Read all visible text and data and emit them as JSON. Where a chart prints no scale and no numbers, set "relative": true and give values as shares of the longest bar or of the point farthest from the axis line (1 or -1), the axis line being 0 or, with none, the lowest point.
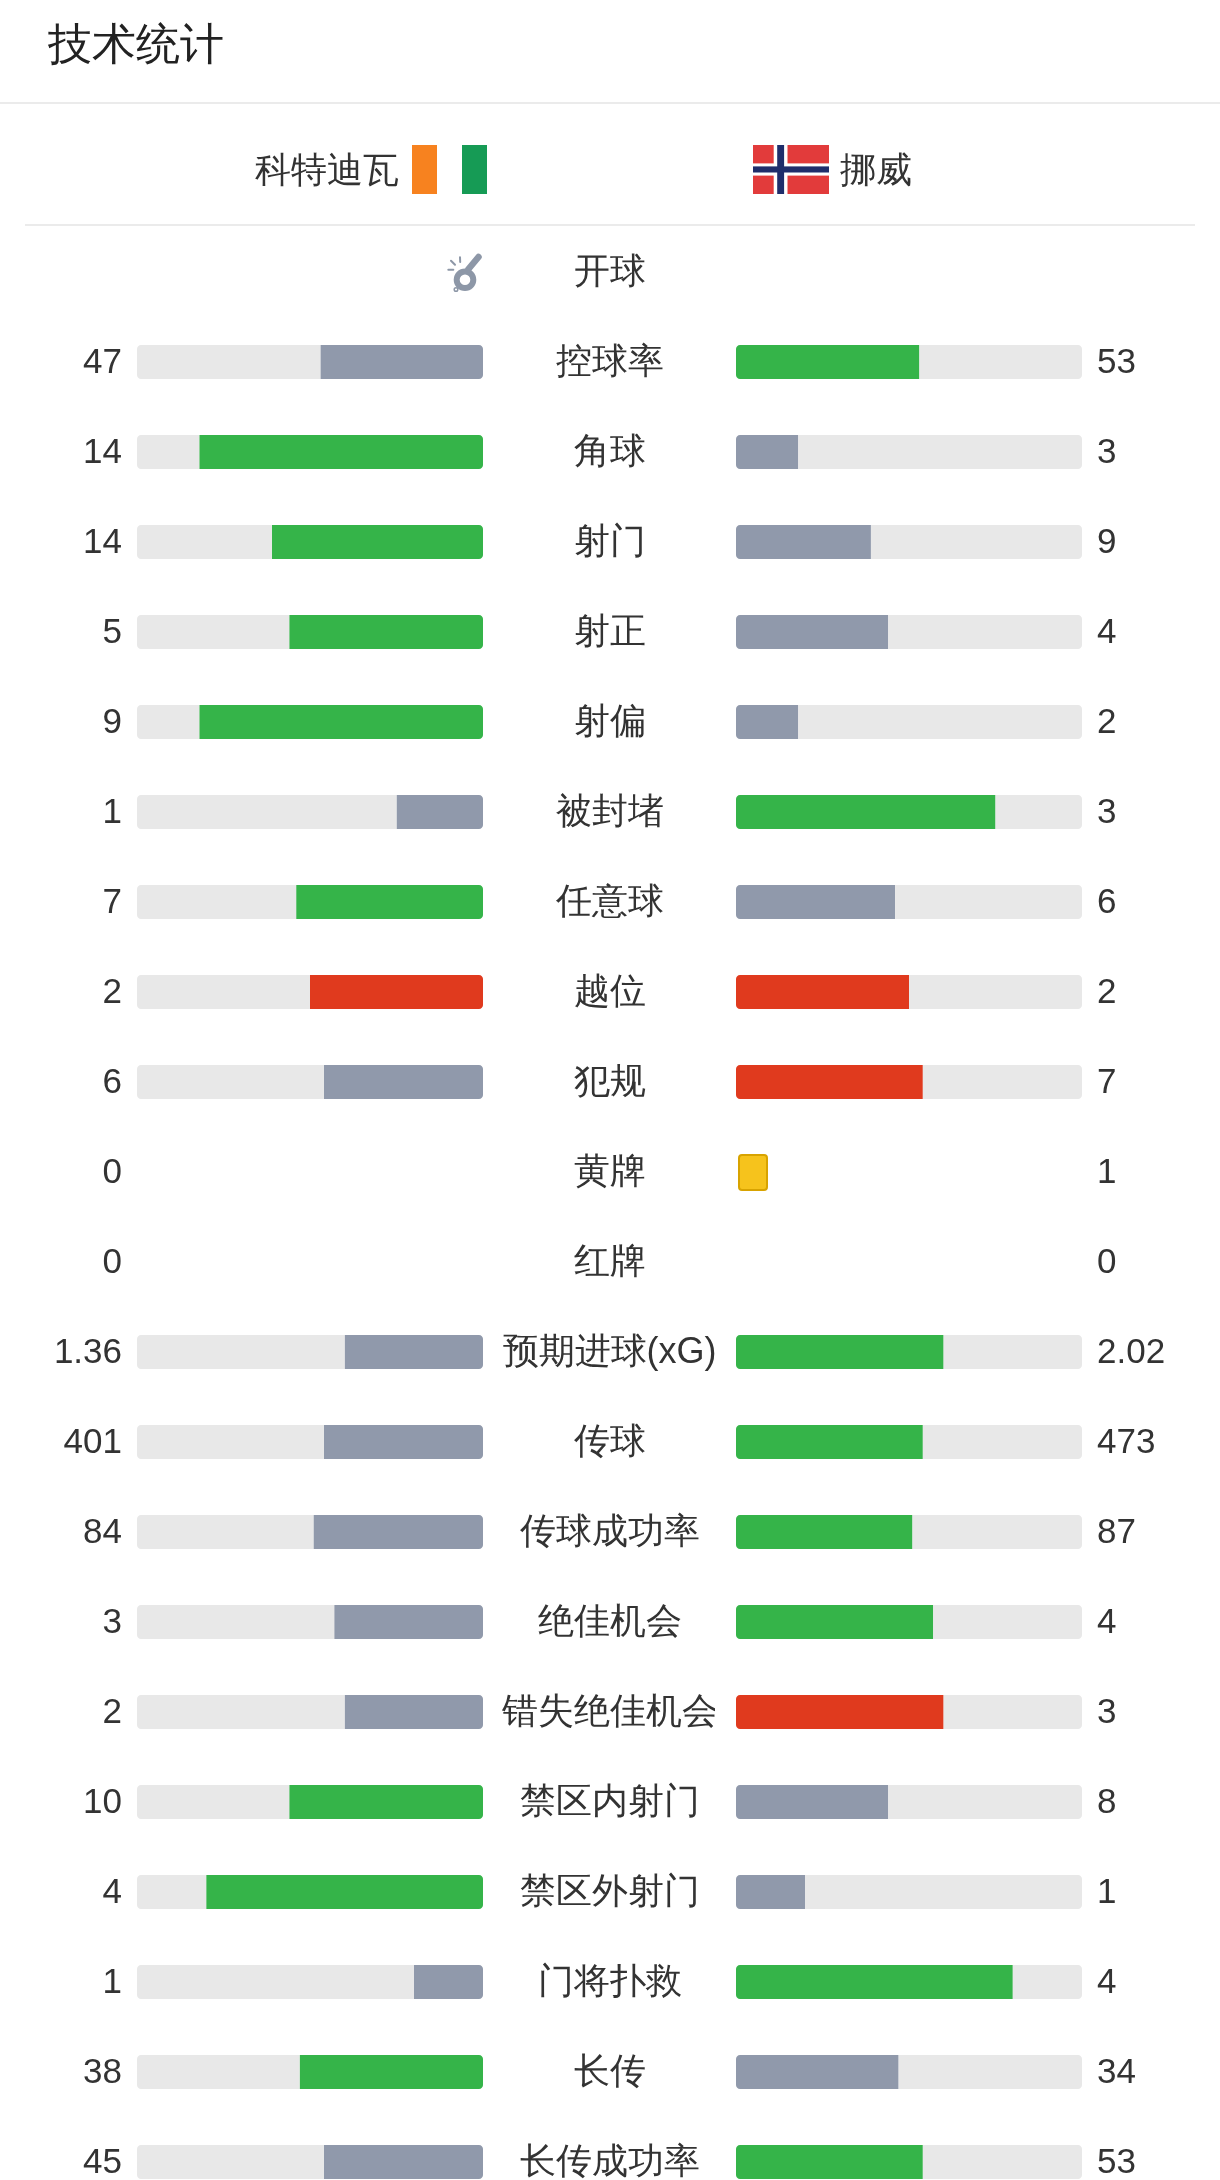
{
  "chart_data": [
    {
      "type": "bar",
      "orientation": "horizontal",
      "stacked": true,
      "relative": true,
      "title": "技术统计",
      "categories": [
        "开球",
        "控球率",
        "角球",
        "射门",
        "射正",
        "射偏",
        "被封堵",
        "任意球",
        "越位",
        "犯规",
        "黄牌",
        "红牌",
        "预期进球(xG)",
        "传球",
        "传球成功率",
        "绝佳机会",
        "错失绝佳机会",
        "禁区内射门",
        "禁区外射门",
        "门将扑救",
        "长传",
        "长传成功率"
      ],
      "series": [
        {
          "name": "科特迪瓦",
          "values": [
            null,
            -0.47,
            -0.82,
            -0.61,
            -0.56,
            -0.82,
            -0.25,
            -0.54,
            -0.5,
            -0.46,
            null,
            null,
            -0.4,
            -0.46,
            -0.49,
            -0.43,
            -0.4,
            -0.56,
            -0.8,
            -0.2,
            -0.53,
            -0.46
          ],
          "colors": [
            null,
            "#9099ab",
            "#35b449",
            "#35b449",
            "#35b449",
            "#35b449",
            "#9099ab",
            "#35b449",
            "#e03a1e",
            "#9099ab",
            null,
            null,
            "#9099ab",
            "#9099ab",
            "#9099ab",
            "#9099ab",
            "#9099ab",
            "#35b449",
            "#35b449",
            "#9099ab",
            "#35b449",
            "#9099ab"
          ]
        },
        {
          "color": "#e8e8e8",
          "values": [
            null,
            -0.53,
            -0.18,
            -0.39,
            -0.44,
            -0.18,
            -0.75,
            -0.46,
            -0.5,
            -0.54,
            null,
            null,
            -0.6,
            -0.54,
            -0.51,
            -0.57,
            -0.6,
            -0.44,
            -0.2,
            -0.8,
            -0.47,
            -0.54
          ]
        }
      ],
      "annotations": [
        "47",
        "14",
        "14",
        "5",
        "9",
        "1",
        "7",
        "2",
        "6",
        "0",
        "0",
        "1.36",
        "401",
        "84",
        "3",
        "2",
        "10",
        "4",
        "1",
        "38",
        "45"
      ]
    },
    {
      "type": "bar",
      "orientation": "horizontal",
      "stacked": true,
      "relative": true,
      "categories": [
        null,
        null,
        null,
        null,
        null,
        null,
        null,
        null,
        null,
        null,
        null,
        null,
        null,
        null,
        null,
        null,
        null,
        null,
        null,
        null,
        null,
        null
      ],
      "series": [
        {
          "name": "挪威",
          "values": [
            null,
            0.53,
            0.18,
            0.39,
            0.44,
            0.18,
            0.75,
            0.46,
            0.5,
            0.54,
            null,
            null,
            0.6,
            0.54,
            0.51,
            0.57,
            0.6,
            0.44,
            0.2,
            0.8,
            0.47,
            0.54
          ],
          "colors": [
            null,
            "#35b449",
            "#9099ab",
            "#9099ab",
            "#9099ab",
            "#9099ab",
            "#35b449",
            "#9099ab",
            "#e03a1e",
            "#e03a1e",
            null,
            null,
            "#35b449",
            "#35b449",
            "#35b449",
            "#35b449",
            "#e03a1e",
            "#9099ab",
            "#9099ab",
            "#35b449",
            "#9099ab",
            "#35b449"
          ]
        },
        {
          "color": "#e8e8e8",
          "values": [
            null,
            0.47,
            0.82,
            0.61,
            0.56,
            0.82,
            0.25,
            0.54,
            0.5,
            0.46,
            null,
            null,
            0.4,
            0.46,
            0.49,
            0.43,
            0.4,
            0.56,
            0.8,
            0.2,
            0.53,
            0.46
          ]
        }
      ],
      "annotations": [
        "53",
        "3",
        "9",
        "4",
        "2",
        "3",
        "6",
        "2",
        "7",
        "1",
        "0",
        "2.02",
        "473",
        "87",
        "4",
        "3",
        "8",
        "1",
        "4",
        "34",
        "53"
      ]
    }
  ]
}
